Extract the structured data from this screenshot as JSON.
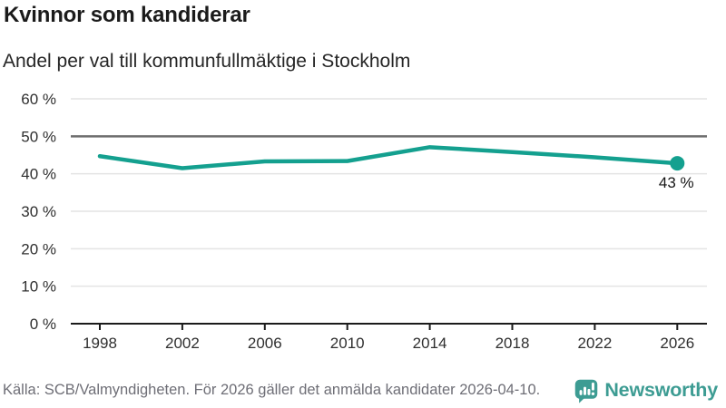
{
  "header": {
    "title": "Kvinnor som kandiderar",
    "subtitle": "Andel per val till kommunfullmäktige i Stockholm"
  },
  "chart_data": {
    "type": "line",
    "title": "Kvinnor som kandiderar",
    "subtitle": "Andel per val till kommunfullmäktige i Stockholm",
    "categories": [
      "1998",
      "2002",
      "2006",
      "2010",
      "2014",
      "2018",
      "2022",
      "2026"
    ],
    "values": [
      44.7,
      41.5,
      43.3,
      43.4,
      47.1,
      45.8,
      44.4,
      42.8
    ],
    "xlabel": "",
    "ylabel": "",
    "ylim": [
      0,
      60
    ],
    "yticks": [
      0,
      10,
      20,
      30,
      40,
      50,
      60
    ],
    "ytick_suffix": " %",
    "grid": true,
    "reference_line": 50,
    "baseline": 0,
    "end_label": "43 %",
    "legend": "none",
    "line_color": "#14a08f",
    "gridline_color": "#e4e4e4",
    "reference_line_color": "#6d6d6d",
    "axis_color": "#1b1b1b"
  },
  "footer": {
    "source": "Källa: SCB/Valmyndigheten. För 2026 gäller det anmälda kandidater 2026-04-10.",
    "brand": "Newsworthy"
  },
  "colors": {
    "accent_teal": "#14a08f",
    "brand_teal": "#3d9c93",
    "title_text": "#1b1b1b",
    "muted_text": "#6e6e76"
  }
}
